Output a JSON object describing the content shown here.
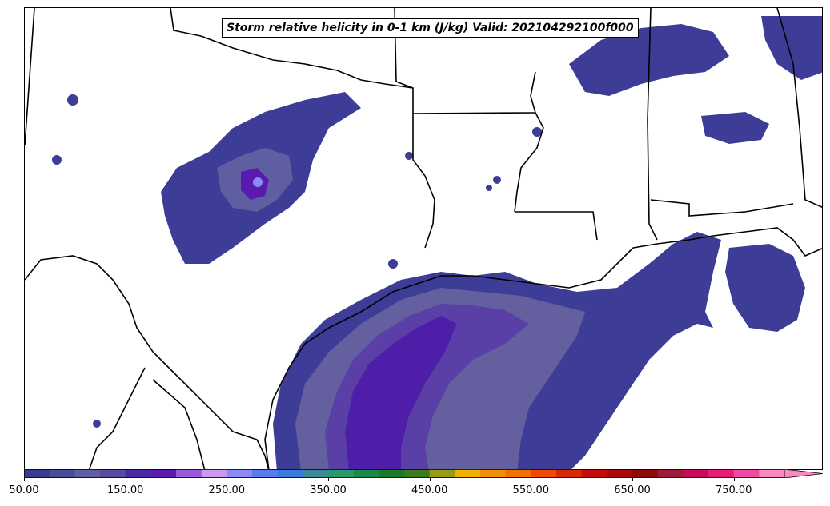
{
  "title": "Storm relative helicity in 0-1 km (J/kg) Valid: 202104292100f000",
  "colorbar": {
    "min": 50,
    "max": 800,
    "step": 25,
    "extend": "max",
    "colors": [
      "#3a3a8f",
      "#4a4a9a",
      "#5e5ea0",
      "#5a4aa0",
      "#4a2aa0",
      "#5a1ab0",
      "#9a5ad8",
      "#c89af0",
      "#8a8af8",
      "#5a7af0",
      "#3a7ad8",
      "#3a8a9a",
      "#2a9a6a",
      "#1a8a4a",
      "#1a7a2a",
      "#3a7a1a",
      "#9a9a1a",
      "#f0b000",
      "#f09000",
      "#f07000",
      "#f04a00",
      "#d82a00",
      "#c80a0a",
      "#a80a0a",
      "#900a0a",
      "#a01a3a",
      "#c80a5a",
      "#e81a7a",
      "#f04aa0",
      "#f88ac0"
    ],
    "tick_labels": [
      "50.00",
      "150.00",
      "250.00",
      "350.00",
      "450.00",
      "550.00",
      "650.00",
      "750.00"
    ]
  }
}
